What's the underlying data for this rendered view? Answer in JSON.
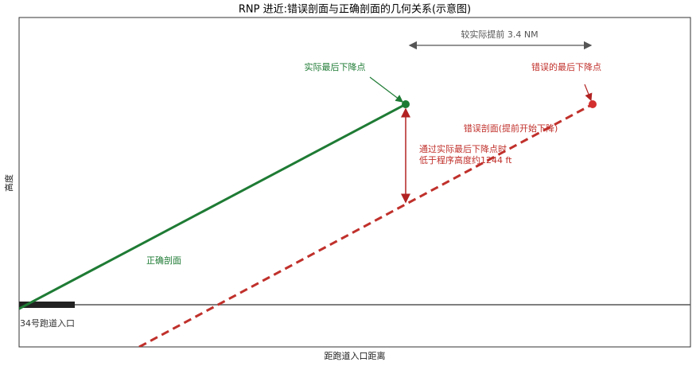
{
  "title": "RNP 进近:错误剖面与正确剖面的几何关系(示意图)",
  "x_label": "距跑道入口距离",
  "y_label": "高度",
  "annotations": {
    "offset": "较实际提前 3.4 NM",
    "actual_fap": "实际最后下降点",
    "wrong_fap": "错误的最后下降点",
    "wrong_profile": "错误剖面(提前开始下降)",
    "height_note_1": "通过实际最后下降点时",
    "height_note_2": "低于程序高度约1244 ft",
    "correct_profile": "正确剖面",
    "threshold": "34号跑道入口"
  }
}
